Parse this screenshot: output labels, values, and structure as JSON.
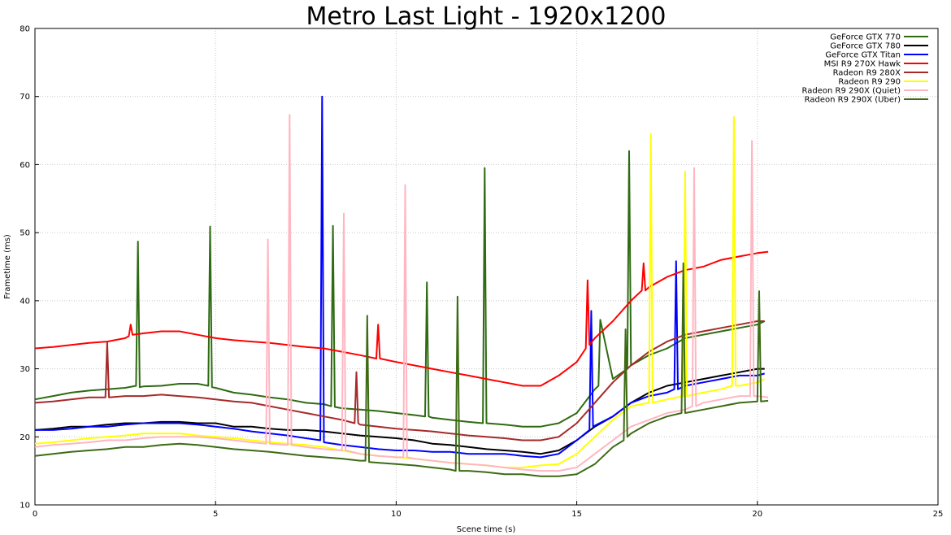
{
  "chart_data": {
    "type": "line",
    "title": "Metro Last Light - 1920x1200",
    "xlabel": "Scene time (s)",
    "ylabel": "Frametime (ms)",
    "xlim": [
      0,
      25
    ],
    "ylim": [
      10,
      80
    ],
    "xticks": [
      0,
      5,
      10,
      15,
      20,
      25
    ],
    "yticks": [
      10,
      20,
      30,
      40,
      50,
      60,
      70,
      80
    ],
    "grid": true,
    "legend_position": "top-right",
    "series": [
      {
        "name": "GeForce GTX 770",
        "color": "#2e6b12",
        "x": [
          0,
          0.5,
          1,
          1.5,
          2,
          2.5,
          2.8,
          2.85,
          2.9,
          3,
          3.5,
          4,
          4.5,
          4.8,
          4.85,
          4.9,
          5,
          5.5,
          6,
          6.5,
          7,
          7.5,
          8,
          8.2,
          8.25,
          8.3,
          8.5,
          9,
          9.5,
          10,
          10.5,
          10.8,
          10.85,
          10.9,
          11,
          11.5,
          12,
          12.4,
          12.45,
          12.5,
          13,
          13.5,
          14,
          14.5,
          15,
          15.5,
          15.6,
          15.65,
          16,
          16.4,
          16.45,
          16.5,
          17,
          17.5,
          18,
          18.5,
          19,
          19.5,
          20,
          20.2
        ],
        "y": [
          25.5,
          26,
          26.5,
          26.8,
          27,
          27.2,
          27.5,
          48.7,
          27.3,
          27.4,
          27.5,
          27.8,
          27.8,
          27.5,
          50.9,
          27.3,
          27.2,
          26.5,
          26.2,
          25.8,
          25.5,
          25,
          24.8,
          24.5,
          51,
          24.4,
          24.2,
          24,
          23.8,
          23.5,
          23.2,
          23,
          42.7,
          23,
          22.8,
          22.5,
          22.2,
          22,
          59.5,
          22,
          21.8,
          21.5,
          21.5,
          22,
          23.5,
          27,
          27.5,
          37.2,
          28.5,
          30,
          62,
          30.5,
          32,
          33,
          34.5,
          35,
          35.5,
          36,
          36.5,
          37
        ]
      },
      {
        "name": "GeForce GTX 780",
        "color": "#000000",
        "x": [
          0,
          0.5,
          1,
          1.5,
          2,
          2.5,
          3,
          3.5,
          4,
          4.5,
          5,
          5.5,
          6,
          6.5,
          7,
          7.5,
          8,
          8.5,
          9,
          9.5,
          10,
          10.5,
          11,
          11.5,
          12,
          12.5,
          13,
          13.5,
          14,
          14.5,
          15,
          15.5,
          16,
          16.5,
          17,
          17.5,
          18,
          18.5,
          19,
          19.5,
          20,
          20.2
        ],
        "y": [
          21,
          21.2,
          21.5,
          21.5,
          21.8,
          22,
          22,
          22.2,
          22.2,
          22,
          22,
          21.5,
          21.5,
          21.2,
          21,
          21,
          20.8,
          20.5,
          20.2,
          20,
          19.8,
          19.5,
          19,
          18.8,
          18.5,
          18.2,
          18,
          17.8,
          17.5,
          18,
          19.5,
          21.5,
          23,
          25,
          26.5,
          27.5,
          28,
          28.5,
          29,
          29.5,
          30,
          30
        ]
      },
      {
        "name": "GeForce GTX Titan",
        "color": "#0000ff",
        "x": [
          0,
          0.5,
          1,
          1.5,
          2,
          2.5,
          3,
          3.5,
          4,
          4.5,
          5,
          5.5,
          6,
          6.5,
          7,
          7.5,
          7.9,
          7.95,
          8.0,
          8.5,
          9,
          9.5,
          10,
          10.5,
          11,
          11.5,
          12,
          12.5,
          13,
          13.5,
          14,
          14.5,
          15,
          15.35,
          15.4,
          15.45,
          16,
          16.5,
          17,
          17.5,
          17.7,
          17.75,
          17.8,
          18,
          18.5,
          19,
          19.5,
          20,
          20.2
        ],
        "y": [
          21,
          21,
          21.2,
          21.5,
          21.5,
          21.8,
          22,
          22,
          22,
          21.8,
          21.5,
          21.2,
          20.8,
          20.5,
          20.2,
          19.8,
          19.5,
          70,
          19.2,
          18.8,
          18.5,
          18.2,
          18,
          18,
          17.8,
          17.8,
          17.5,
          17.5,
          17.5,
          17.2,
          17,
          17.5,
          19.5,
          21,
          38.5,
          21.5,
          23,
          25,
          26,
          26.5,
          27,
          45.8,
          27,
          27.5,
          28,
          28.5,
          29,
          29,
          29.3
        ]
      },
      {
        "name": "MSI R9 270X Hawk",
        "color": "#ff0000",
        "x": [
          0,
          0.5,
          1,
          1.5,
          2,
          2.5,
          2.6,
          2.65,
          2.7,
          3,
          3.5,
          4,
          4.5,
          5,
          5.5,
          6,
          6.5,
          7,
          7.5,
          8,
          8.5,
          9,
          9.45,
          9.5,
          9.55,
          10,
          10.5,
          11,
          11.5,
          12,
          12.5,
          13,
          13.5,
          14,
          14.5,
          15,
          15.25,
          15.3,
          15.35,
          15.5,
          16,
          16.5,
          16.8,
          16.85,
          16.9,
          17,
          17.5,
          18,
          18.5,
          19,
          19.5,
          20,
          20.3
        ],
        "y": [
          33,
          33.2,
          33.5,
          33.8,
          34,
          34.5,
          34.8,
          36.5,
          35,
          35.2,
          35.5,
          35.5,
          35,
          34.5,
          34.2,
          34,
          33.8,
          33.5,
          33.2,
          33,
          32.5,
          32,
          31.5,
          36.5,
          31.5,
          31,
          30.5,
          30,
          29.5,
          29,
          28.5,
          28,
          27.5,
          27.5,
          29,
          31,
          33,
          43,
          33.5,
          34.5,
          37,
          40,
          41.5,
          45.5,
          41.5,
          42,
          43.5,
          44.5,
          45,
          46,
          46.5,
          47,
          47.2
        ]
      },
      {
        "name": "Radeon R9 280X",
        "color": "#a52a2a",
        "x": [
          0,
          0.5,
          1,
          1.5,
          1.95,
          2.0,
          2.05,
          2.5,
          3,
          3.5,
          4,
          4.5,
          5,
          5.5,
          6,
          6.5,
          7,
          7.5,
          8,
          8.5,
          8.85,
          8.9,
          8.95,
          9,
          9.5,
          10,
          10.5,
          11,
          11.5,
          12,
          12.5,
          13,
          13.5,
          14,
          14.5,
          15,
          15.5,
          16,
          16.5,
          17,
          17.5,
          18,
          18.5,
          19,
          19.5,
          20,
          20.2
        ],
        "y": [
          25,
          25.2,
          25.5,
          25.8,
          25.8,
          34,
          25.8,
          26,
          26,
          26.2,
          26,
          25.8,
          25.5,
          25.2,
          25,
          24.5,
          24,
          23.5,
          23,
          22.5,
          22,
          29.5,
          22,
          21.8,
          21.5,
          21.2,
          21,
          20.8,
          20.5,
          20.2,
          20,
          19.8,
          19.5,
          19.5,
          20,
          22,
          25,
          28,
          30.5,
          32.5,
          34,
          35,
          35.5,
          36,
          36.5,
          37,
          37
        ]
      },
      {
        "name": "Radeon R9 290",
        "color": "#ffff00",
        "x": [
          0,
          0.5,
          1,
          1.5,
          2,
          2.5,
          3,
          3.5,
          4,
          4.5,
          5,
          5.5,
          6,
          6.5,
          7,
          7.5,
          8,
          8.5,
          9,
          9.5,
          10,
          10.5,
          11,
          11.5,
          12,
          12.5,
          13,
          13.5,
          14,
          14.5,
          15,
          15.5,
          16,
          16.5,
          17.0,
          17.05,
          17.1,
          17.5,
          17.95,
          18.0,
          18.05,
          18.5,
          19,
          19.3,
          19.35,
          19.4,
          19.5,
          20,
          20.2
        ],
        "y": [
          19,
          19.2,
          19.5,
          19.8,
          20,
          20.2,
          20.5,
          20.5,
          20.5,
          20.2,
          20,
          19.8,
          19.5,
          19.2,
          19,
          18.8,
          18.5,
          18,
          17.5,
          17.2,
          17,
          16.8,
          16.5,
          16.2,
          16,
          15.8,
          15.5,
          15.5,
          15.8,
          16,
          17.5,
          20,
          22.5,
          24.5,
          25,
          64.5,
          25,
          25.5,
          26,
          59,
          26,
          26.5,
          27,
          27.5,
          67,
          27.5,
          27.5,
          28,
          28.5
        ]
      },
      {
        "name": "Radeon R9 290X (Quiet)",
        "color": "#ffb6c1",
        "x": [
          0,
          0.5,
          1,
          1.5,
          2,
          2.5,
          3,
          3.5,
          4,
          4.5,
          5,
          5.5,
          6,
          6.4,
          6.45,
          6.5,
          7,
          7.05,
          7.1,
          7.5,
          8,
          8.5,
          8.55,
          8.6,
          9,
          9.5,
          10,
          10.2,
          10.25,
          10.3,
          10.5,
          11,
          11.5,
          12,
          12.5,
          13,
          13.5,
          14,
          14.5,
          15,
          15.5,
          16,
          16.5,
          17,
          17.5,
          18,
          18.2,
          18.25,
          18.3,
          18.5,
          19,
          19.5,
          19.8,
          19.85,
          19.9,
          20,
          20.3
        ],
        "y": [
          18.5,
          18.8,
          19,
          19.2,
          19.5,
          19.5,
          19.8,
          20,
          20,
          20,
          19.8,
          19.5,
          19.2,
          19,
          49,
          19,
          18.8,
          67.3,
          18.8,
          18.5,
          18.2,
          18,
          52.8,
          18,
          17.5,
          17.2,
          17,
          17,
          57,
          17,
          16.8,
          16.5,
          16.2,
          16,
          15.8,
          15.5,
          15.2,
          15,
          15,
          15.5,
          17.5,
          19.5,
          21.5,
          22.5,
          23.5,
          24,
          24.5,
          59.5,
          24.5,
          25,
          25.5,
          26,
          26,
          63.5,
          26,
          26,
          25.8
        ]
      },
      {
        "name": "Radeon R9 290X (Uber)",
        "color": "#3d6b14",
        "x": [
          0,
          0.5,
          1,
          1.5,
          2,
          2.5,
          3,
          3.5,
          4,
          4.5,
          5,
          5.5,
          6,
          6.5,
          7,
          7.5,
          8,
          8.5,
          9,
          9.15,
          9.2,
          9.25,
          9.5,
          10,
          10.5,
          11,
          11.5,
          11.65,
          11.7,
          11.75,
          12,
          12.5,
          13,
          13.5,
          14,
          14.5,
          15,
          15.5,
          16,
          16.3,
          16.35,
          16.4,
          16.5,
          17,
          17.5,
          17.9,
          17.95,
          18.0,
          18.5,
          19,
          19.5,
          20,
          20.05,
          20.1,
          20.3
        ],
        "y": [
          17.2,
          17.5,
          17.8,
          18,
          18.2,
          18.5,
          18.5,
          18.8,
          19,
          18.8,
          18.5,
          18.2,
          18,
          17.8,
          17.5,
          17.2,
          17,
          16.8,
          16.5,
          16.5,
          37.8,
          16.3,
          16.2,
          16,
          15.8,
          15.5,
          15.2,
          15,
          40.6,
          15,
          15,
          14.8,
          14.5,
          14.5,
          14.2,
          14.2,
          14.5,
          16,
          18.5,
          19.5,
          35.8,
          20,
          20.5,
          22,
          23,
          23.5,
          45.5,
          23.5,
          24,
          24.5,
          25,
          25.2,
          41.4,
          25.2,
          25.3
        ]
      }
    ]
  }
}
